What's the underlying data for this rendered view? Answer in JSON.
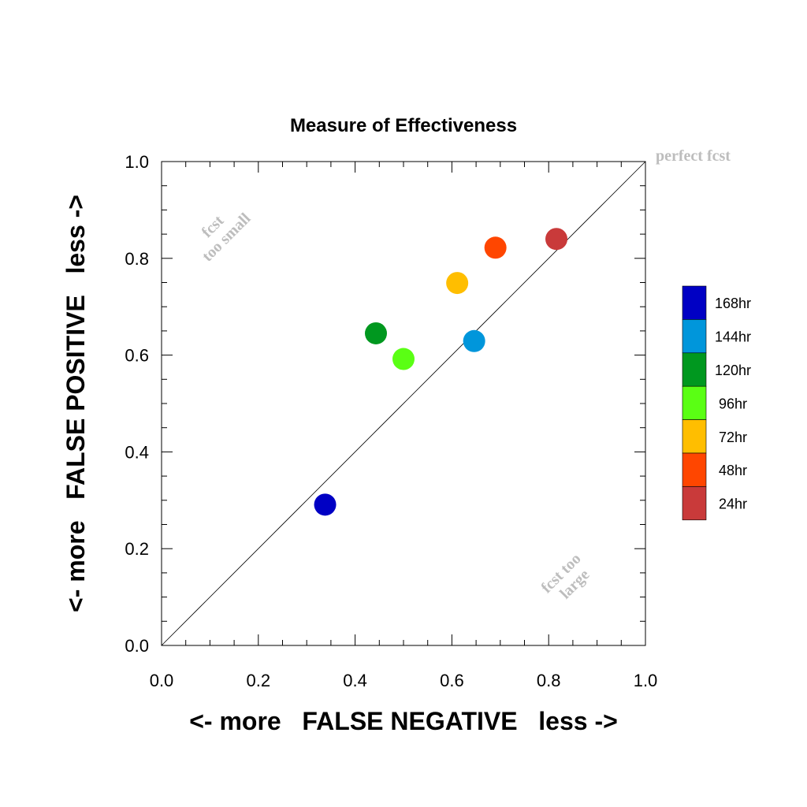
{
  "chart_data": {
    "type": "scatter",
    "title": "Measure of Effectiveness",
    "xlabel": "<- more   FALSE NEGATIVE   less ->",
    "ylabel": "<- more   FALSE POSITIVE   less ->",
    "xlim": [
      0.0,
      1.0
    ],
    "ylim": [
      0.0,
      1.0
    ],
    "xticks": [
      "0.0",
      "0.2",
      "0.4",
      "0.6",
      "0.8",
      "1.0"
    ],
    "yticks": [
      "0.0",
      "0.2",
      "0.4",
      "0.6",
      "0.8",
      "1.0"
    ],
    "reference_line": "diagonal",
    "grid": false,
    "legend_position": "right",
    "annotations": {
      "top_right": "perfect fcst",
      "upper_left": [
        "fcst",
        "too small"
      ],
      "lower_right": [
        "fcst too",
        "large"
      ]
    },
    "series": [
      {
        "name": "168hr",
        "x": 0.338,
        "y": 0.291,
        "color": "#0000c4"
      },
      {
        "name": "144hr",
        "x": 0.646,
        "y": 0.629,
        "color": "#0096db"
      },
      {
        "name": "120hr",
        "x": 0.443,
        "y": 0.645,
        "color": "#00981f"
      },
      {
        "name": "96hr",
        "x": 0.5,
        "y": 0.592,
        "color": "#5aff14"
      },
      {
        "name": "72hr",
        "x": 0.611,
        "y": 0.749,
        "color": "#ffbe00"
      },
      {
        "name": "48hr",
        "x": 0.69,
        "y": 0.822,
        "color": "#ff4600"
      },
      {
        "name": "24hr",
        "x": 0.816,
        "y": 0.84,
        "color": "#c93a3a"
      }
    ]
  }
}
